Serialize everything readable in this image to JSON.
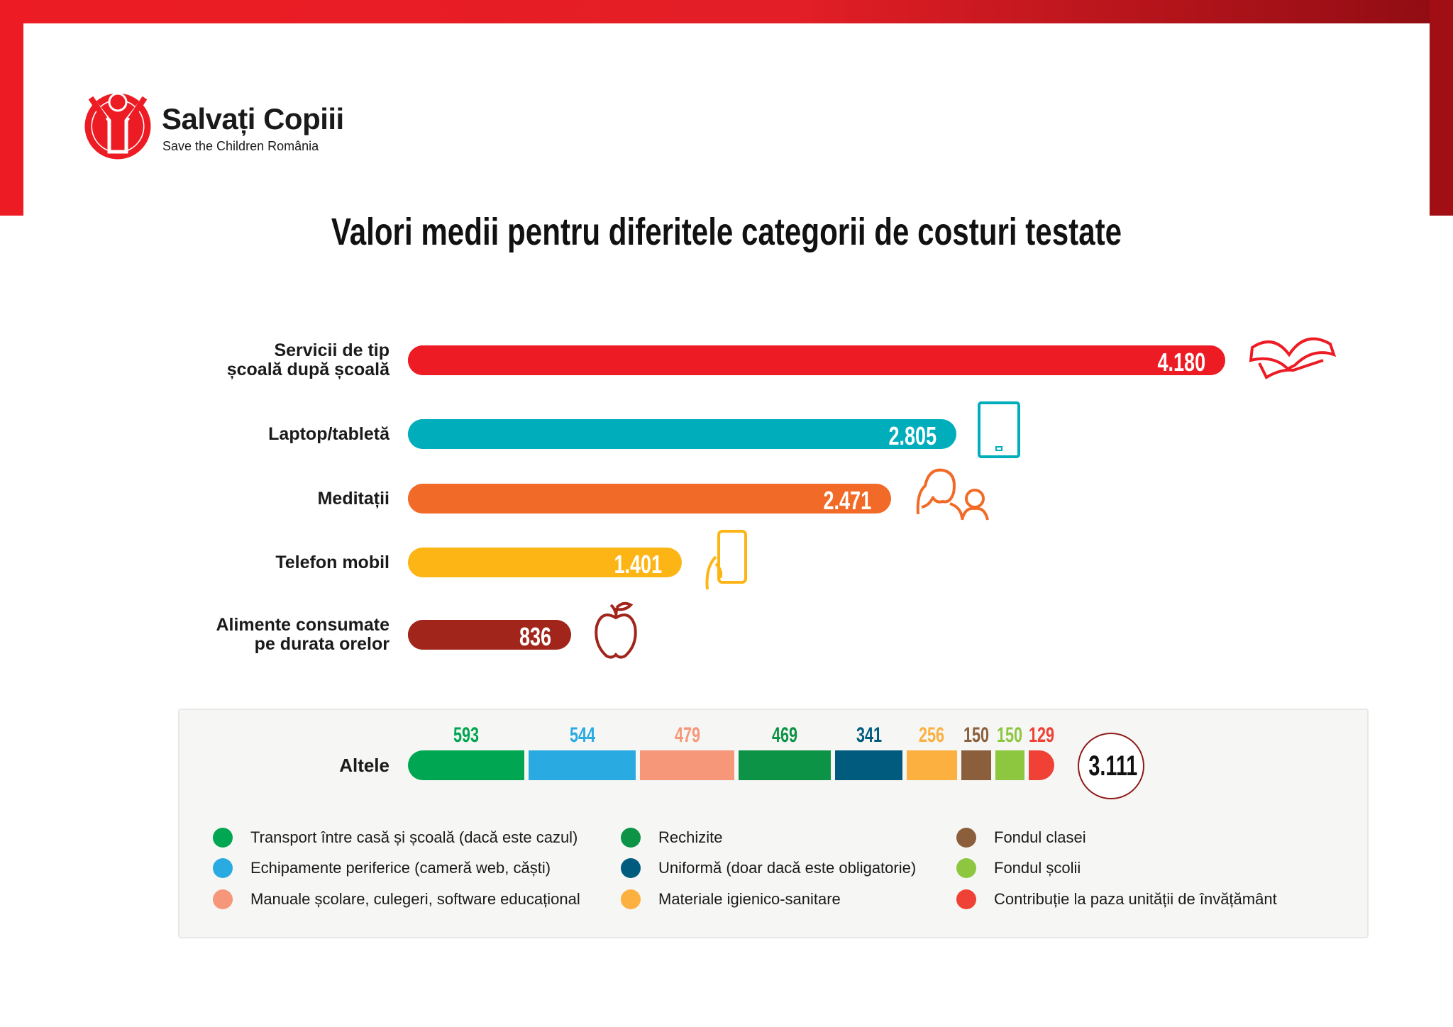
{
  "brand": {
    "name": "Salvați Copiii",
    "subtitle": "Save the Children România",
    "color": "#ed1c24"
  },
  "chart_data": [
    {
      "type": "bar",
      "orientation": "horizontal",
      "title": "Valori medii pentru diferitele categorii de costuri testate",
      "categories": [
        "Servicii de tip școală după școală",
        "Laptop/tabletă",
        "Meditații",
        "Telefon mobil",
        "Alimente consumate pe durata orelor"
      ],
      "category_lines": [
        [
          "Servicii de tip",
          "școală după școală"
        ],
        [
          "Laptop/tabletă"
        ],
        [
          "Meditații"
        ],
        [
          "Telefon mobil"
        ],
        [
          "Alimente consumate",
          "pe durata orelor"
        ]
      ],
      "values": [
        4180,
        2805,
        2471,
        1401,
        836
      ],
      "value_labels": [
        "4.180",
        "2.805",
        "2.471",
        "1.401",
        "836"
      ],
      "colors": [
        "#ed1c24",
        "#00adbb",
        "#f26a27",
        "#fdb515",
        "#a1251b"
      ],
      "icons": [
        "open-book-icon",
        "tablet-icon",
        "tutor-people-icon",
        "mobile-phone-icon",
        "apple-icon"
      ]
    },
    {
      "type": "stacked-bar",
      "category": "Altele",
      "total_label": "3.111",
      "total": 3111,
      "series": [
        {
          "name": "Transport între casă și școală (dacă este cazul)",
          "value": 593,
          "color": "#00a651"
        },
        {
          "name": "Echipamente periferice (cameră web, căști)",
          "value": 544,
          "color": "#29abe2"
        },
        {
          "name": "Manuale școlare, culegeri, software educațional",
          "value": 479,
          "color": "#f7977a"
        },
        {
          "name": "Rechizite",
          "value": 469,
          "color": "#0d9345"
        },
        {
          "name": "Uniformă (doar dacă este obligatorie)",
          "value": 341,
          "color": "#005b7f"
        },
        {
          "name": "Materiale igienico-sanitare",
          "value": 256,
          "color": "#fbb040"
        },
        {
          "name": "Fondul clasei",
          "value": 150,
          "color": "#8b5e3c"
        },
        {
          "name": "Fondul școlii",
          "value": 150,
          "color": "#8dc63f"
        },
        {
          "name": "Contribuție la paza unității de învățământ",
          "value": 129,
          "color": "#ef4136"
        }
      ],
      "legend_placement": "bottom"
    }
  ]
}
